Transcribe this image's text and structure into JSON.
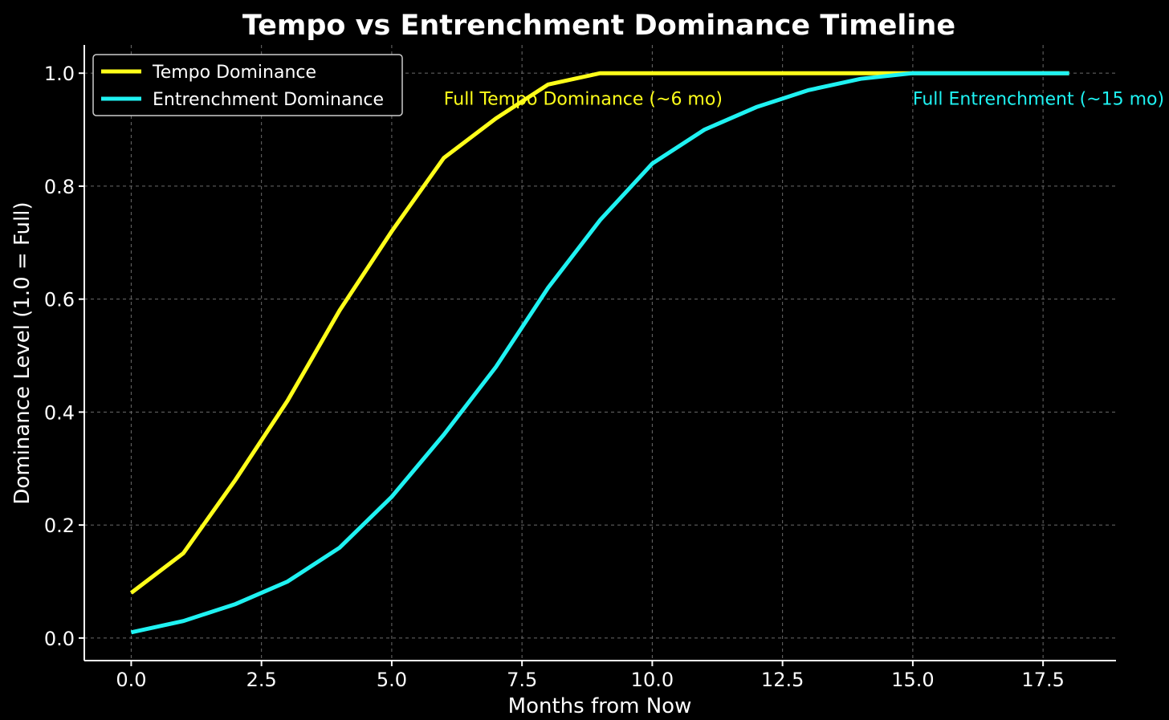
{
  "chart_data": {
    "type": "line",
    "title": "Tempo vs Entrenchment Dominance Timeline",
    "xlabel": "Months from Now",
    "ylabel": "Dominance Level (1.0 = Full)",
    "xlim": [
      -0.9,
      18.9
    ],
    "ylim": [
      -0.04,
      1.05
    ],
    "xticks": [
      0.0,
      2.5,
      5.0,
      7.5,
      10.0,
      12.5,
      15.0,
      17.5
    ],
    "xtick_labels": [
      "0.0",
      "2.5",
      "5.0",
      "7.5",
      "10.0",
      "12.5",
      "15.0",
      "17.5"
    ],
    "yticks": [
      0.0,
      0.2,
      0.4,
      0.6,
      0.8,
      1.0
    ],
    "ytick_labels": [
      "0.0",
      "0.2",
      "0.4",
      "0.6",
      "0.8",
      "1.0"
    ],
    "grid": true,
    "legend_position": "top-left",
    "x": [
      0,
      1,
      2,
      3,
      4,
      5,
      6,
      7,
      8,
      9,
      10,
      11,
      12,
      13,
      14,
      15,
      16,
      17,
      18
    ],
    "series": [
      {
        "name": "Tempo Dominance",
        "color": "#ffff1a",
        "values": [
          0.08,
          0.15,
          0.28,
          0.42,
          0.58,
          0.72,
          0.85,
          0.92,
          0.98,
          1.0,
          1.0,
          1.0,
          1.0,
          1.0,
          1.0,
          1.0,
          1.0,
          1.0,
          1.0
        ]
      },
      {
        "name": "Entrenchment Dominance",
        "color": "#1ff2f2",
        "values": [
          0.01,
          0.03,
          0.06,
          0.1,
          0.16,
          0.25,
          0.36,
          0.48,
          0.62,
          0.74,
          0.84,
          0.9,
          0.94,
          0.97,
          0.99,
          1.0,
          1.0,
          1.0,
          1.0
        ]
      }
    ],
    "annotations": [
      {
        "text": "Full Tempo Dominance (~6 mo)",
        "x": 6,
        "y": 0.95,
        "color": "#ffff1a"
      },
      {
        "text": "Full Entrenchment (~15 mo)",
        "x": 15,
        "y": 0.95,
        "color": "#1ff2f2"
      }
    ]
  }
}
